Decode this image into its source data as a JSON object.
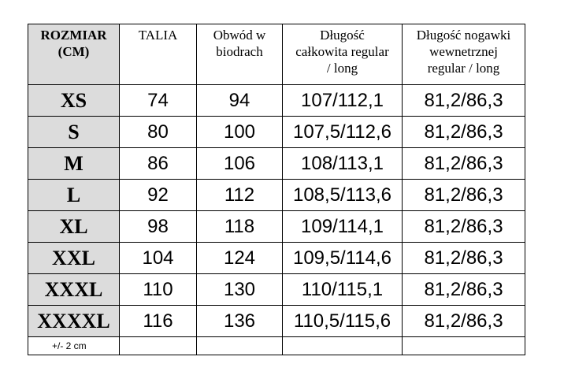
{
  "headers": [
    [
      "ROZMIAR",
      "(CM)"
    ],
    [
      "TALIA"
    ],
    [
      "Obwód w",
      "biodrach"
    ],
    [
      "Długość",
      "całkowita regular",
      "/ long"
    ],
    [
      "Długość nogawki",
      "wewnetrznej",
      "regular / long"
    ]
  ],
  "rows": [
    {
      "size": "XS",
      "talia": "74",
      "biodra": "94",
      "dlugosc": "107/112,1",
      "nogawka": "81,2/86,3"
    },
    {
      "size": "S",
      "talia": "80",
      "biodra": "100",
      "dlugosc": "107,5/112,6",
      "nogawka": "81,2/86,3"
    },
    {
      "size": "M",
      "talia": "86",
      "biodra": "106",
      "dlugosc": "108/113,1",
      "nogawka": "81,2/86,3"
    },
    {
      "size": "L",
      "talia": "92",
      "biodra": "112",
      "dlugosc": "108,5/113,6",
      "nogawka": "81,2/86,3"
    },
    {
      "size": "XL",
      "talia": "98",
      "biodra": "118",
      "dlugosc": "109/114,1",
      "nogawka": "81,2/86,3"
    },
    {
      "size": "XXL",
      "talia": "104",
      "biodra": "124",
      "dlugosc": "109,5/114,6",
      "nogawka": "81,2/86,3"
    },
    {
      "size": "XXXL",
      "talia": "110",
      "biodra": "130",
      "dlugosc": "110/115,1",
      "nogawka": "81,2/86,3"
    },
    {
      "size": "XXXXL",
      "talia": "116",
      "biodra": "136",
      "dlugosc": "110,5/115,6",
      "nogawka": "81,2/86,3"
    }
  ],
  "note": "+/- 2 cm",
  "colors": {
    "size_cell_bg": "#dcdcdc",
    "border": "#000000"
  }
}
